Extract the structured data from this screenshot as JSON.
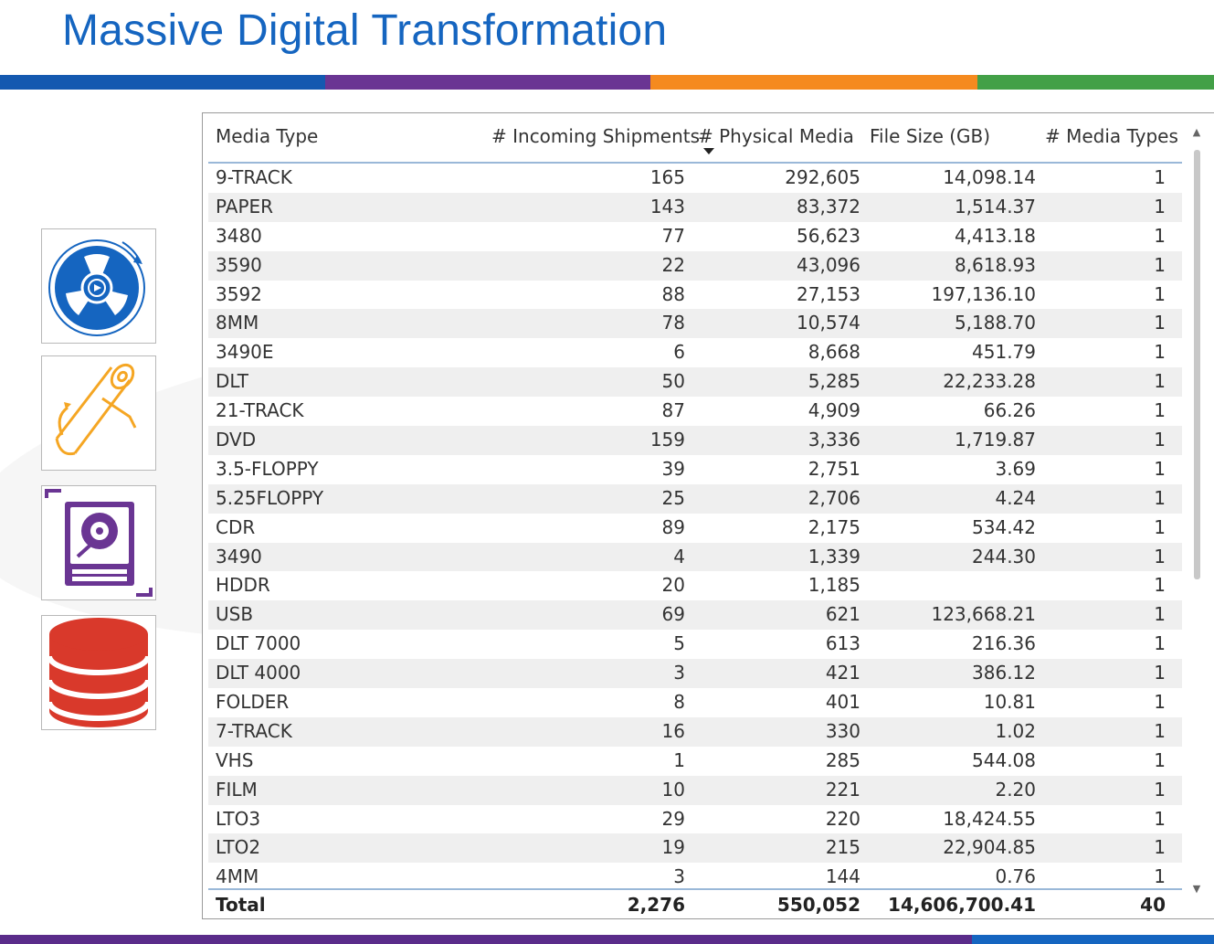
{
  "title": "Massive Digital Transformation",
  "colors": {
    "title": "#1565c0",
    "band": [
      "#1459b0",
      "#6a3593",
      "#f58a1f",
      "#43a047"
    ],
    "bottom_band": [
      "#5a2c8a",
      "#1565c0"
    ],
    "header_rule": "#9ab8d8",
    "row_alt": "#efefef"
  },
  "icons": [
    {
      "name": "tape-reel-icon",
      "color": "#1565c0"
    },
    {
      "name": "paper-roll-icon",
      "color": "#f5a623"
    },
    {
      "name": "hard-drive-icon",
      "color": "#6a3593"
    },
    {
      "name": "database-icon",
      "color": "#d9392b"
    }
  ],
  "table": {
    "columns": [
      "Media Type",
      "# Incoming Shipments",
      "# Physical Media",
      "File Size (GB)",
      "# Media Types"
    ],
    "sorted_column": "# Physical Media",
    "rows": [
      {
        "media_type": "9-TRACK",
        "shipments": "165",
        "physical_media": "292,605",
        "file_size": "14,098.14",
        "media_types": "1"
      },
      {
        "media_type": "PAPER",
        "shipments": "143",
        "physical_media": "83,372",
        "file_size": "1,514.37",
        "media_types": "1"
      },
      {
        "media_type": "3480",
        "shipments": "77",
        "physical_media": "56,623",
        "file_size": "4,413.18",
        "media_types": "1"
      },
      {
        "media_type": "3590",
        "shipments": "22",
        "physical_media": "43,096",
        "file_size": "8,618.93",
        "media_types": "1"
      },
      {
        "media_type": "3592",
        "shipments": "88",
        "physical_media": "27,153",
        "file_size": "197,136.10",
        "media_types": "1"
      },
      {
        "media_type": "8MM",
        "shipments": "78",
        "physical_media": "10,574",
        "file_size": "5,188.70",
        "media_types": "1"
      },
      {
        "media_type": "3490E",
        "shipments": "6",
        "physical_media": "8,668",
        "file_size": "451.79",
        "media_types": "1"
      },
      {
        "media_type": "DLT",
        "shipments": "50",
        "physical_media": "5,285",
        "file_size": "22,233.28",
        "media_types": "1"
      },
      {
        "media_type": "21-TRACK",
        "shipments": "87",
        "physical_media": "4,909",
        "file_size": "66.26",
        "media_types": "1"
      },
      {
        "media_type": "DVD",
        "shipments": "159",
        "physical_media": "3,336",
        "file_size": "1,719.87",
        "media_types": "1"
      },
      {
        "media_type": "3.5-FLOPPY",
        "shipments": "39",
        "physical_media": "2,751",
        "file_size": "3.69",
        "media_types": "1"
      },
      {
        "media_type": "5.25FLOPPY",
        "shipments": "25",
        "physical_media": "2,706",
        "file_size": "4.24",
        "media_types": "1"
      },
      {
        "media_type": "CDR",
        "shipments": "89",
        "physical_media": "2,175",
        "file_size": "534.42",
        "media_types": "1"
      },
      {
        "media_type": "3490",
        "shipments": "4",
        "physical_media": "1,339",
        "file_size": "244.30",
        "media_types": "1"
      },
      {
        "media_type": "HDDR",
        "shipments": "20",
        "physical_media": "1,185",
        "file_size": "",
        "media_types": "1"
      },
      {
        "media_type": "USB",
        "shipments": "69",
        "physical_media": "621",
        "file_size": "123,668.21",
        "media_types": "1"
      },
      {
        "media_type": "DLT 7000",
        "shipments": "5",
        "physical_media": "613",
        "file_size": "216.36",
        "media_types": "1"
      },
      {
        "media_type": "DLT 4000",
        "shipments": "3",
        "physical_media": "421",
        "file_size": "386.12",
        "media_types": "1"
      },
      {
        "media_type": "FOLDER",
        "shipments": "8",
        "physical_media": "401",
        "file_size": "10.81",
        "media_types": "1"
      },
      {
        "media_type": "7-TRACK",
        "shipments": "16",
        "physical_media": "330",
        "file_size": "1.02",
        "media_types": "1"
      },
      {
        "media_type": "VHS",
        "shipments": "1",
        "physical_media": "285",
        "file_size": "544.08",
        "media_types": "1"
      },
      {
        "media_type": "FILM",
        "shipments": "10",
        "physical_media": "221",
        "file_size": "2.20",
        "media_types": "1"
      },
      {
        "media_type": "LTO3",
        "shipments": "29",
        "physical_media": "220",
        "file_size": "18,424.55",
        "media_types": "1"
      },
      {
        "media_type": "LTO2",
        "shipments": "19",
        "physical_media": "215",
        "file_size": "22,904.85",
        "media_types": "1"
      },
      {
        "media_type": "4MM",
        "shipments": "3",
        "physical_media": "144",
        "file_size": "0.76",
        "media_types": "1"
      }
    ],
    "total": {
      "label": "Total",
      "shipments": "2,276",
      "physical_media": "550,052",
      "file_size": "14,606,700.41",
      "media_types": "40"
    }
  }
}
